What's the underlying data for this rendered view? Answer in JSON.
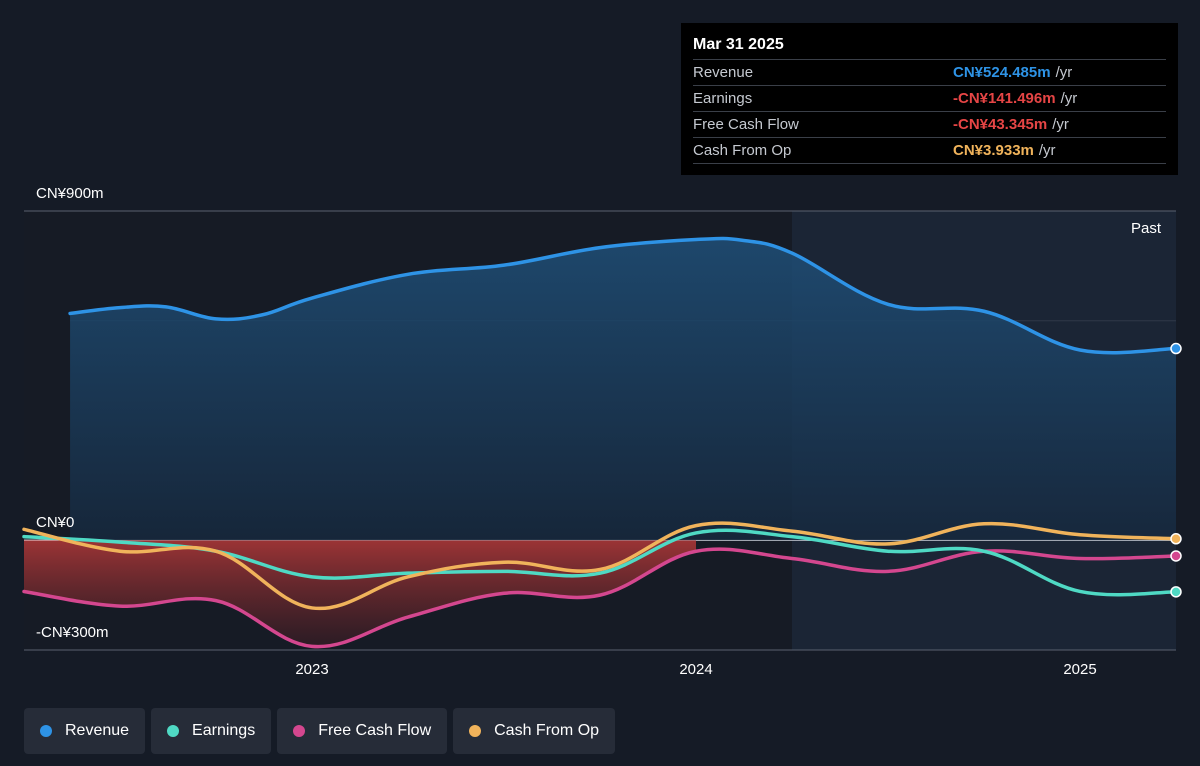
{
  "tooltip": {
    "date": "Mar 31 2025",
    "rows": [
      {
        "label": "Revenue",
        "value": "CN¥524.485m",
        "unit": "/yr",
        "color": "#2e93e6"
      },
      {
        "label": "Earnings",
        "value": "-CN¥141.496m",
        "unit": "/yr",
        "color": "#e64545"
      },
      {
        "label": "Free Cash Flow",
        "value": "-CN¥43.345m",
        "unit": "/yr",
        "color": "#e64545"
      },
      {
        "label": "Cash From Op",
        "value": "CN¥3.933m",
        "unit": "/yr",
        "color": "#f0b35b"
      }
    ]
  },
  "past_label": "Past",
  "legend": [
    {
      "label": "Revenue",
      "color": "#2e93e6"
    },
    {
      "label": "Earnings",
      "color": "#4fd9c4"
    },
    {
      "label": "Free Cash Flow",
      "color": "#d4478f"
    },
    {
      "label": "Cash From Op",
      "color": "#f0b35b"
    }
  ],
  "chart_data": {
    "type": "line",
    "y_unit": "CN¥m",
    "ylim": [
      -300,
      900
    ],
    "y_tick_labels": [
      {
        "value": 900,
        "label": "CN¥900m"
      },
      {
        "value": 0,
        "label": "CN¥0"
      },
      {
        "value": -300,
        "label": "-CN¥300m"
      }
    ],
    "x_range": [
      2022.25,
      2025.25
    ],
    "x_tick_labels": [
      {
        "value": 2023,
        "label": "2023"
      },
      {
        "value": 2024,
        "label": "2024"
      },
      {
        "value": 2025,
        "label": "2025"
      }
    ],
    "forecast_boundary_x": 2024.25,
    "series": [
      {
        "name": "Revenue",
        "color": "#2e93e6",
        "x": [
          2022.37,
          2022.5,
          2022.62,
          2022.75,
          2022.87,
          2023.0,
          2023.25,
          2023.5,
          2023.75,
          2024.0,
          2024.12,
          2024.25,
          2024.5,
          2024.75,
          2025.0,
          2025.25
        ],
        "y": [
          620,
          636,
          638,
          605,
          616,
          662,
          727,
          752,
          800,
          822,
          820,
          785,
          645,
          626,
          520,
          524
        ]
      },
      {
        "name": "Earnings",
        "color": "#4fd9c4",
        "x": [
          2022.25,
          2022.5,
          2022.75,
          2023.0,
          2023.25,
          2023.5,
          2023.75,
          2024.0,
          2024.25,
          2024.5,
          2024.75,
          2025.0,
          2025.25
        ],
        "y": [
          10,
          -5,
          -30,
          -100,
          -90,
          -85,
          -90,
          20,
          10,
          -30,
          -30,
          -140,
          -141
        ]
      },
      {
        "name": "Free Cash Flow",
        "color": "#d4478f",
        "x": [
          2022.25,
          2022.5,
          2022.75,
          2023.0,
          2023.25,
          2023.5,
          2023.75,
          2024.0,
          2024.25,
          2024.5,
          2024.75,
          2025.0,
          2025.25
        ],
        "y": [
          -140,
          -180,
          -165,
          -290,
          -210,
          -145,
          -150,
          -30,
          -50,
          -85,
          -30,
          -50,
          -43
        ]
      },
      {
        "name": "Cash From Op",
        "color": "#f0b35b",
        "x": [
          2022.25,
          2022.5,
          2022.75,
          2023.0,
          2023.25,
          2023.5,
          2023.75,
          2024.0,
          2024.25,
          2024.5,
          2024.75,
          2025.0,
          2025.25
        ],
        "y": [
          30,
          -30,
          -30,
          -185,
          -100,
          -60,
          -80,
          40,
          25,
          -10,
          45,
          15,
          4
        ]
      }
    ]
  }
}
